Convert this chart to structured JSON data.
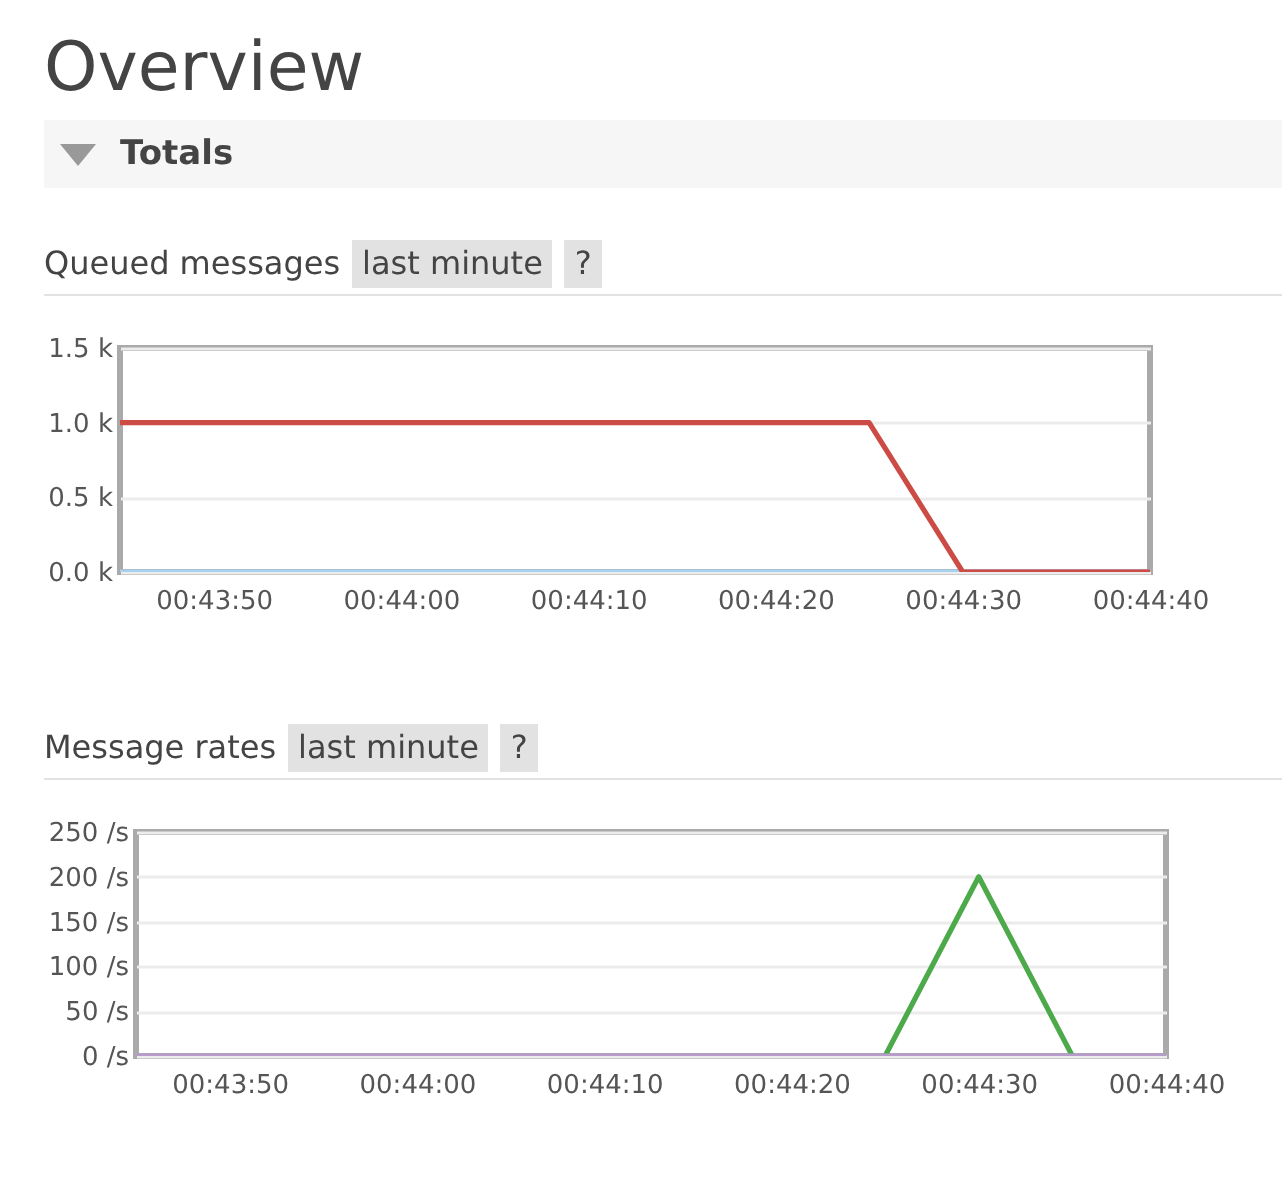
{
  "chart_data": [
    {
      "type": "line",
      "title": "Queued messages",
      "annotations": [
        "Overview",
        "Totals",
        "last minute",
        "?"
      ],
      "x": [
        0.72916667,
        0.73055556,
        0.73194444,
        0.73333333,
        0.73472222,
        0.73611111,
        0.7375,
        0.73888889,
        0.74027778,
        0.74166667,
        0.74305556,
        0.74444444
      ],
      "series": [
        {
          "color": "#a8d2f2",
          "values": [
            0,
            0,
            0,
            0,
            0,
            0,
            0,
            0,
            0,
            0,
            0,
            0
          ]
        },
        {
          "color": "#cc4b45",
          "values": [
            1000,
            1000,
            1000,
            1000,
            1000,
            1000,
            1000,
            1000,
            1000,
            0,
            0,
            0
          ]
        }
      ],
      "xlim": [
        0.72916667,
        0.74444444
      ],
      "xticks": [
        {
          "value": 0.73055556,
          "label": "00:43:50"
        },
        {
          "value": 0.73333333,
          "label": "00:44:00"
        },
        {
          "value": 0.73611111,
          "label": "00:44:10"
        },
        {
          "value": 0.73888889,
          "label": "00:44:20"
        },
        {
          "value": 0.74166667,
          "label": "00:44:30"
        },
        {
          "value": 0.74444444,
          "label": "00:44:40"
        }
      ],
      "ylim": [
        0,
        1500
      ],
      "yticks": [
        {
          "value": 0,
          "label": "0.0 k"
        },
        {
          "value": 500,
          "label": "0.5 k"
        },
        {
          "value": 1000,
          "label": "1.0 k"
        },
        {
          "value": 1500,
          "label": "1.5 k"
        }
      ],
      "grid": "y",
      "marker": "none",
      "line_style": "solid"
    },
    {
      "type": "line",
      "title": "Message rates",
      "annotations": [
        "last minute",
        "?"
      ],
      "x": [
        0.72916667,
        0.73055556,
        0.73194444,
        0.73333333,
        0.73472222,
        0.73611111,
        0.7375,
        0.73888889,
        0.74027778,
        0.74166667,
        0.74305556,
        0.74444444
      ],
      "series": [
        {
          "color": "#4caa4a",
          "values": [
            null,
            null,
            null,
            null,
            null,
            null,
            null,
            null,
            0,
            200,
            0,
            null
          ]
        },
        {
          "color": "#b79ccb",
          "values": [
            0,
            0,
            0,
            0,
            0,
            0,
            0,
            0,
            0,
            0,
            0,
            0
          ]
        }
      ],
      "xlim": [
        0.72916667,
        0.74444444
      ],
      "xticks": [
        {
          "value": 0.73055556,
          "label": "00:43:50"
        },
        {
          "value": 0.73333333,
          "label": "00:44:00"
        },
        {
          "value": 0.73611111,
          "label": "00:44:10"
        },
        {
          "value": 0.73888889,
          "label": "00:44:20"
        },
        {
          "value": 0.74166667,
          "label": "00:44:30"
        },
        {
          "value": 0.74444444,
          "label": "00:44:40"
        }
      ],
      "ylim": [
        0,
        250
      ],
      "yticks": [
        {
          "value": 0,
          "label": "0 /s"
        },
        {
          "value": 50,
          "label": "50 /s"
        },
        {
          "value": 100,
          "label": "100 /s"
        },
        {
          "value": 150,
          "label": "150 /s"
        },
        {
          "value": 200,
          "label": "200 /s"
        },
        {
          "value": 250,
          "label": "250 /s"
        }
      ],
      "grid": "y",
      "marker": "none",
      "line_style": "solid"
    }
  ]
}
